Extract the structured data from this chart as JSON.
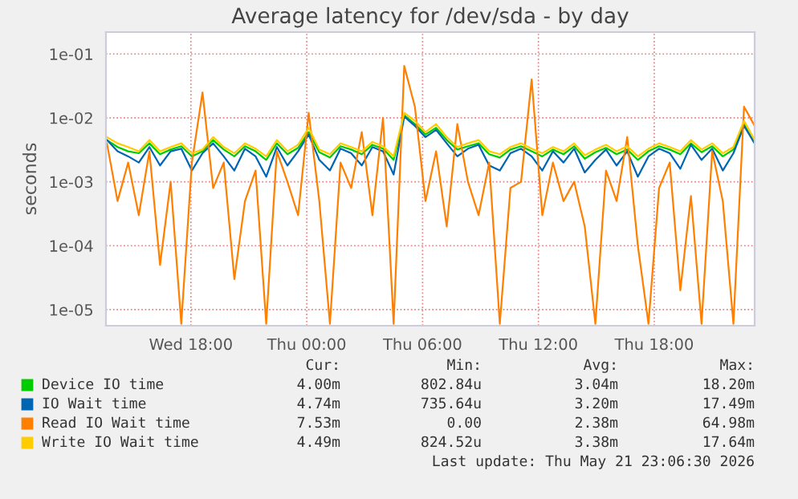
{
  "chart_data": {
    "type": "line",
    "title": "Average latency for /dev/sda - by day",
    "ylabel": "seconds",
    "x": [
      "2026-05-20T13:39",
      "2026-05-20T14:12",
      "2026-05-20T14:45",
      "2026-05-20T15:18",
      "2026-05-20T15:51",
      "2026-05-20T16:24",
      "2026-05-20T16:57",
      "2026-05-20T17:30",
      "2026-05-20T18:03",
      "2026-05-20T18:36",
      "2026-05-20T19:09",
      "2026-05-20T19:42",
      "2026-05-20T20:15",
      "2026-05-20T20:48",
      "2026-05-20T21:21",
      "2026-05-20T21:54",
      "2026-05-20T22:27",
      "2026-05-20T23:00",
      "2026-05-20T23:33",
      "2026-05-21T00:06",
      "2026-05-21T00:39",
      "2026-05-21T01:12",
      "2026-05-21T01:45",
      "2026-05-21T02:18",
      "2026-05-21T02:51",
      "2026-05-21T03:24",
      "2026-05-21T03:57",
      "2026-05-21T04:30",
      "2026-05-21T05:03",
      "2026-05-21T05:36",
      "2026-05-21T06:09",
      "2026-05-21T06:42",
      "2026-05-21T07:15",
      "2026-05-21T07:48",
      "2026-05-21T08:21",
      "2026-05-21T08:54",
      "2026-05-21T09:27",
      "2026-05-21T10:00",
      "2026-05-21T10:33",
      "2026-05-21T11:06",
      "2026-05-21T11:39",
      "2026-05-21T12:12",
      "2026-05-21T12:45",
      "2026-05-21T13:18",
      "2026-05-21T13:51",
      "2026-05-21T14:24",
      "2026-05-21T14:57",
      "2026-05-21T15:30",
      "2026-05-21T16:03",
      "2026-05-21T16:36",
      "2026-05-21T17:09",
      "2026-05-21T17:42",
      "2026-05-21T18:15",
      "2026-05-21T18:48",
      "2026-05-21T19:21",
      "2026-05-21T19:54",
      "2026-05-21T20:27",
      "2026-05-21T21:00",
      "2026-05-21T21:33",
      "2026-05-21T22:06",
      "2026-05-21T22:39",
      "2026-05-21T23:12"
    ],
    "series": [
      {
        "name": "Device IO time",
        "color": "#00cc00",
        "values": [
          0.0045,
          0.0035,
          0.003,
          0.0028,
          0.004,
          0.0027,
          0.0032,
          0.0036,
          0.0025,
          0.003,
          0.0045,
          0.0032,
          0.0025,
          0.0036,
          0.003,
          0.0022,
          0.004,
          0.0027,
          0.0034,
          0.006,
          0.0029,
          0.0024,
          0.0036,
          0.0032,
          0.0027,
          0.0038,
          0.0033,
          0.0022,
          0.011,
          0.008,
          0.0055,
          0.007,
          0.0045,
          0.0032,
          0.0036,
          0.004,
          0.0027,
          0.0024,
          0.0032,
          0.0036,
          0.003,
          0.0025,
          0.0032,
          0.0027,
          0.0036,
          0.0023,
          0.0029,
          0.0034,
          0.0027,
          0.0032,
          0.0022,
          0.003,
          0.0036,
          0.0032,
          0.0027,
          0.004,
          0.0029,
          0.0036,
          0.0025,
          0.0032,
          0.008,
          0.004
        ]
      },
      {
        "name": "IO Wait time",
        "color": "#0066b3",
        "values": [
          0.0045,
          0.003,
          0.0025,
          0.002,
          0.0035,
          0.0018,
          0.003,
          0.0033,
          0.0015,
          0.0028,
          0.004,
          0.0025,
          0.0015,
          0.0033,
          0.0025,
          0.0012,
          0.0035,
          0.0018,
          0.003,
          0.0055,
          0.0022,
          0.0015,
          0.0033,
          0.0028,
          0.0018,
          0.0035,
          0.003,
          0.0013,
          0.0105,
          0.0075,
          0.005,
          0.0065,
          0.004,
          0.0025,
          0.0033,
          0.0038,
          0.0018,
          0.0015,
          0.0028,
          0.0033,
          0.0025,
          0.0015,
          0.003,
          0.002,
          0.0033,
          0.0014,
          0.0022,
          0.0032,
          0.0018,
          0.003,
          0.0012,
          0.0025,
          0.0033,
          0.0028,
          0.0016,
          0.0038,
          0.0022,
          0.0033,
          0.0015,
          0.0028,
          0.0075,
          0.004
        ]
      },
      {
        "name": "Read IO Wait time",
        "color": "#ff8000",
        "values": [
          0.004,
          0.0005,
          0.002,
          0.0003,
          0.003,
          5e-05,
          0.001,
          6e-06,
          0.002,
          0.025,
          0.0008,
          0.002,
          3e-05,
          0.0005,
          0.0015,
          6e-06,
          0.003,
          0.001,
          0.0003,
          0.012,
          0.0005,
          6e-06,
          0.002,
          0.0008,
          0.006,
          0.0003,
          0.01,
          6e-06,
          0.065,
          0.015,
          0.0005,
          0.003,
          0.0002,
          0.008,
          0.001,
          0.0003,
          0.002,
          6e-06,
          0.0008,
          0.001,
          0.04,
          0.0003,
          0.002,
          0.0005,
          0.001,
          0.0002,
          6e-06,
          0.0015,
          0.0005,
          0.005,
          0.0001,
          6e-06,
          0.0008,
          0.002,
          2e-05,
          0.0006,
          6e-06,
          0.003,
          0.0005,
          6e-06,
          0.015,
          0.0075
        ]
      },
      {
        "name": "Write IO Wait time",
        "color": "#ffcc00",
        "values": [
          0.005,
          0.004,
          0.0035,
          0.003,
          0.0045,
          0.003,
          0.0035,
          0.004,
          0.0028,
          0.0032,
          0.005,
          0.0035,
          0.0028,
          0.004,
          0.0033,
          0.0025,
          0.0045,
          0.003,
          0.0038,
          0.007,
          0.0032,
          0.0027,
          0.004,
          0.0035,
          0.003,
          0.0042,
          0.0036,
          0.0025,
          0.012,
          0.009,
          0.006,
          0.008,
          0.005,
          0.0035,
          0.004,
          0.0045,
          0.003,
          0.0027,
          0.0035,
          0.004,
          0.0033,
          0.0028,
          0.0035,
          0.003,
          0.004,
          0.0026,
          0.0032,
          0.0038,
          0.003,
          0.0036,
          0.0025,
          0.0033,
          0.004,
          0.0035,
          0.003,
          0.0045,
          0.0032,
          0.004,
          0.0028,
          0.0035,
          0.009,
          0.0045
        ]
      }
    ],
    "log": "y",
    "xlim": [
      "2026-05-20T13:36",
      "2026-05-21T23:12"
    ],
    "xticks": [
      {
        "value": "2026-05-20T18:00",
        "label": "Wed 18:00"
      },
      {
        "value": "2026-05-21T00:00",
        "label": "Thu 00:00"
      },
      {
        "value": "2026-05-21T06:00",
        "label": "Thu 06:00"
      },
      {
        "value": "2026-05-21T12:00",
        "label": "Thu 12:00"
      },
      {
        "value": "2026-05-21T18:00",
        "label": "Thu 18:00"
      }
    ],
    "ylim": [
      5.6e-06,
      0.22
    ],
    "yticks": [
      {
        "value": 1e-05,
        "label": "1e-05"
      },
      {
        "value": 0.0001,
        "label": "1e-04"
      },
      {
        "value": 0.001,
        "label": "1e-03"
      },
      {
        "value": 0.01,
        "label": "1e-02"
      },
      {
        "value": 0.1,
        "label": "1e-01"
      }
    ],
    "grid": true,
    "legend": "bottom",
    "annotations": [
      "Cur:",
      "Min:",
      "Avg:",
      "Max:",
      "4.00m",
      "802.84u",
      "3.04m",
      "18.20m",
      "4.74m",
      "735.64u",
      "3.20m",
      "17.49m",
      "7.53m",
      "0.00",
      "2.38m",
      "64.98m",
      "4.49m",
      "824.52u",
      "3.38m",
      "17.64m",
      "Last update: Thu May 21 23:06:30 2026"
    ]
  }
}
